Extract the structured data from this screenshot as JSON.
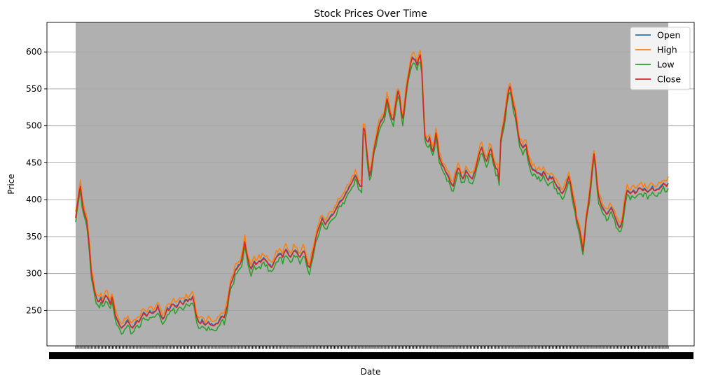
{
  "chart_data": {
    "type": "line",
    "title": "Stock Prices Over Time",
    "xlabel": "Date",
    "ylabel": "Price",
    "ylim": [
      202,
      640
    ],
    "yticks": [
      250,
      300,
      350,
      400,
      450,
      500,
      550,
      600
    ],
    "grid": "horizontal",
    "legend_position": "top-right",
    "plot_background": "#b0b0b0",
    "x_tick_labels_overlapping": true,
    "close_series": [
      375,
      392,
      408,
      418,
      400,
      385,
      378,
      372,
      352,
      328,
      300,
      288,
      276,
      268,
      262,
      262,
      266,
      260,
      265,
      270,
      268,
      263,
      258,
      268,
      260,
      244,
      238,
      233,
      229,
      226,
      228,
      230,
      233,
      236,
      232,
      228,
      226,
      229,
      232,
      236,
      234,
      238,
      242,
      246,
      244,
      242,
      246,
      248,
      246,
      246,
      248,
      250,
      256,
      248,
      242,
      238,
      240,
      246,
      252,
      250,
      254,
      258,
      258,
      255,
      254,
      258,
      262,
      260,
      258,
      262,
      264,
      262,
      265,
      264,
      268,
      260,
      246,
      238,
      234,
      232,
      236,
      232,
      230,
      232,
      234,
      231,
      230,
      229,
      230,
      232,
      232,
      236,
      240,
      242,
      240,
      248,
      256,
      272,
      285,
      290,
      296,
      304,
      306,
      310,
      312,
      318,
      330,
      343,
      330,
      320,
      310,
      306,
      310,
      316,
      312,
      314,
      317,
      315,
      318,
      320,
      318,
      316,
      312,
      310,
      308,
      312,
      318,
      322,
      324,
      326,
      326,
      322,
      328,
      332,
      328,
      324,
      322,
      326,
      330,
      330,
      328,
      324,
      322,
      326,
      330,
      328,
      318,
      310,
      308,
      316,
      326,
      336,
      348,
      356,
      362,
      368,
      374,
      370,
      366,
      370,
      372,
      376,
      378,
      380,
      384,
      388,
      392,
      396,
      398,
      400,
      404,
      408,
      412,
      416,
      420,
      424,
      428,
      432,
      428,
      422,
      418,
      418,
      496,
      494,
      470,
      450,
      432,
      440,
      455,
      470,
      480,
      490,
      500,
      505,
      508,
      512,
      524,
      536,
      528,
      516,
      510,
      508,
      522,
      536,
      546,
      540,
      520,
      510,
      524,
      544,
      560,
      572,
      584,
      592,
      590,
      588,
      582,
      590,
      596,
      578,
      530,
      486,
      480,
      478,
      484,
      470,
      465,
      475,
      490,
      478,
      458,
      452,
      446,
      444,
      438,
      434,
      430,
      424,
      420,
      418,
      428,
      436,
      442,
      440,
      432,
      428,
      432,
      438,
      436,
      432,
      430,
      428,
      434,
      440,
      450,
      460,
      466,
      470,
      462,
      456,
      452,
      458,
      466,
      468,
      456,
      448,
      442,
      440,
      426,
      480,
      494,
      504,
      520,
      534,
      548,
      552,
      540,
      528,
      520,
      506,
      490,
      478,
      474,
      470,
      472,
      474,
      462,
      452,
      446,
      440,
      440,
      438,
      436,
      436,
      434,
      432,
      438,
      434,
      430,
      426,
      430,
      428,
      430,
      424,
      420,
      416,
      414,
      410,
      408,
      412,
      416,
      424,
      430,
      424,
      412,
      398,
      390,
      372,
      366,
      358,
      346,
      330,
      350,
      374,
      388,
      404,
      422,
      444,
      462,
      446,
      420,
      404,
      396,
      390,
      386,
      384,
      380,
      382,
      386,
      388,
      384,
      378,
      372,
      366,
      362,
      364,
      372,
      388,
      404,
      412,
      410,
      408,
      410,
      412,
      408,
      410,
      414,
      416,
      414,
      412,
      414,
      412,
      410,
      412,
      414,
      416,
      412,
      412,
      414,
      414,
      416,
      418,
      422,
      420,
      418,
      422
    ],
    "series": [
      {
        "name": "Open",
        "color": "#1f77b4",
        "derivation": {
          "offset": 0,
          "amp": 2.5
        }
      },
      {
        "name": "High",
        "color": "#ff7f0e",
        "derivation": {
          "offset": 4,
          "amp": 6
        }
      },
      {
        "name": "Low",
        "color": "#2ca02c",
        "derivation": {
          "offset": -4,
          "amp": 6
        }
      },
      {
        "name": "Close",
        "color": "#d62728",
        "derivation": {
          "offset": 0,
          "amp": 0
        }
      }
    ]
  }
}
